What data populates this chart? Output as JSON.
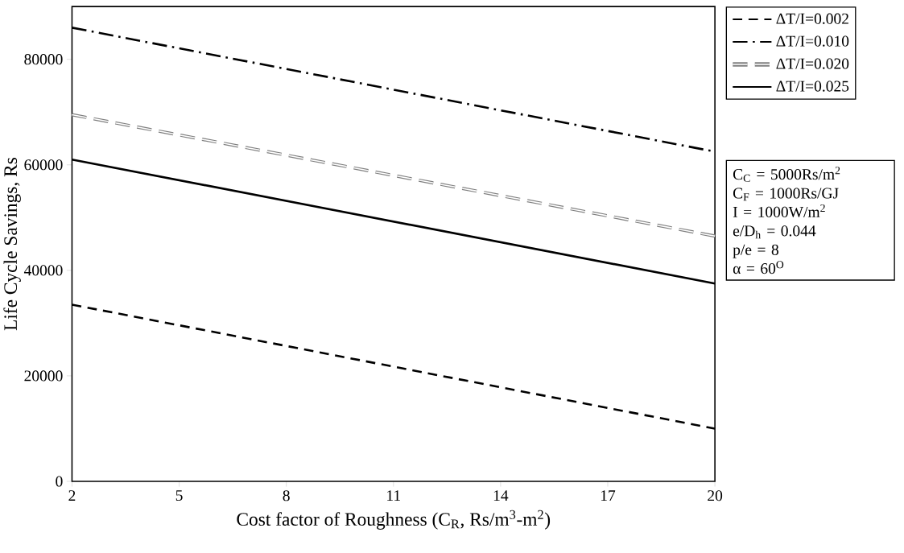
{
  "chart_data": {
    "type": "line",
    "xlabel": "Cost factor of  Roughness (C$_{R}$, Rs/m$^{3}$-m$^{2}$)",
    "ylabel": "Life Cycle Savings, Rs",
    "x": [
      2,
      20
    ],
    "xlim": [
      2,
      20
    ],
    "xticks": [
      2,
      5,
      8,
      11,
      14,
      17,
      20
    ],
    "ylim": [
      0,
      90000
    ],
    "yticks": [
      0,
      20000,
      40000,
      60000,
      80000
    ],
    "grid": false,
    "legend": "top right",
    "marker": "none",
    "series": [
      {
        "name": "ΔT/I=0.002",
        "color": "#000000",
        "line_style": "dashed",
        "values": [
          33500,
          10000
        ]
      },
      {
        "name": "ΔT/I=0.010",
        "color": "#000000",
        "line_style": "dashdot",
        "values": [
          86000,
          62500
        ]
      },
      {
        "name": "ΔT/I=0.020",
        "color": "#808080",
        "line_style": "double dashed",
        "values": [
          69500,
          46500
        ]
      },
      {
        "name": "ΔT/I=0.025",
        "color": "#000000",
        "line_style": "solid",
        "values": [
          61000,
          37500
        ]
      }
    ],
    "annotations": [
      "C$_{C}$ = 5000Rs/m$^{2}$",
      "C$_{F}$ = 1000Rs/GJ",
      "I = 1000W/m$^{2}$",
      "e/D$_{h}$ = 0.044",
      "p/e = 8",
      "α = 60$^{O}$"
    ]
  }
}
